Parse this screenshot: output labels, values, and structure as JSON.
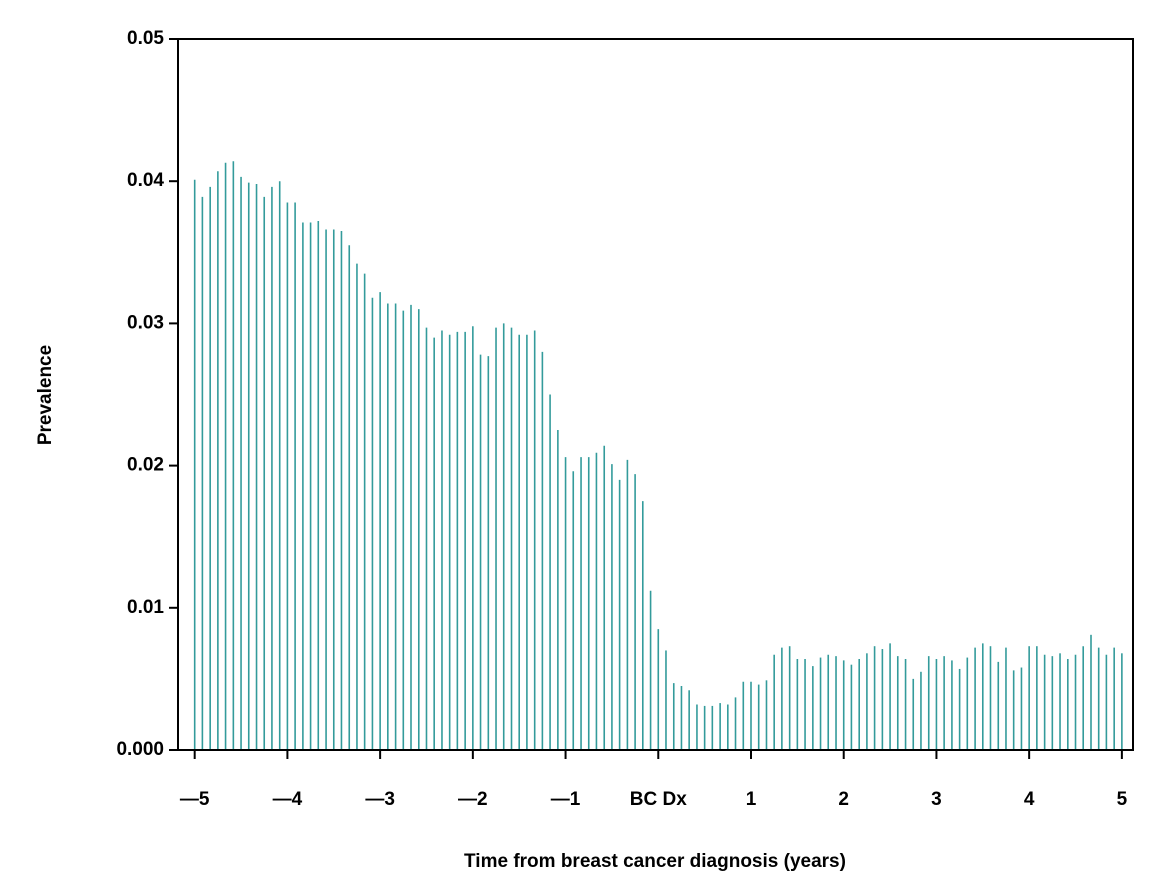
{
  "chart_data": {
    "type": "bar",
    "x_label": "Time from breast cancer diagnosis (years)",
    "y_label": "Prevalence",
    "color": "#339b9b",
    "x": [
      -5,
      -4.917,
      -4.833,
      -4.75,
      -4.667,
      -4.583,
      -4.5,
      -4.417,
      -4.333,
      -4.25,
      -4.167,
      -4.083,
      -4,
      -3.917,
      -3.833,
      -3.75,
      -3.667,
      -3.583,
      -3.5,
      -3.417,
      -3.333,
      -3.25,
      -3.167,
      -3.083,
      -3,
      -2.917,
      -2.833,
      -2.75,
      -2.667,
      -2.583,
      -2.5,
      -2.417,
      -2.333,
      -2.25,
      -2.167,
      -2.083,
      -2,
      -1.917,
      -1.833,
      -1.75,
      -1.667,
      -1.583,
      -1.5,
      -1.417,
      -1.333,
      -1.25,
      -1.167,
      -1.083,
      -1,
      -0.917,
      -0.833,
      -0.75,
      -0.667,
      -0.583,
      -0.5,
      -0.417,
      -0.333,
      -0.25,
      -0.167,
      -0.083,
      0,
      0.083,
      0.167,
      0.25,
      0.333,
      0.417,
      0.5,
      0.583,
      0.667,
      0.75,
      0.833,
      0.917,
      1,
      1.083,
      1.167,
      1.25,
      1.333,
      1.417,
      1.5,
      1.583,
      1.667,
      1.75,
      1.833,
      1.917,
      2,
      2.083,
      2.167,
      2.25,
      2.333,
      2.417,
      2.5,
      2.583,
      2.667,
      2.75,
      2.833,
      2.917,
      3,
      3.083,
      3.167,
      3.25,
      3.333,
      3.417,
      3.5,
      3.583,
      3.667,
      3.75,
      3.833,
      3.917,
      4,
      4.083,
      4.167,
      4.25,
      4.333,
      4.417,
      4.5,
      4.583,
      4.667,
      4.75,
      4.833,
      4.917,
      5
    ],
    "values": [
      0.0401,
      0.0389,
      0.0396,
      0.0407,
      0.0413,
      0.0414,
      0.0403,
      0.0399,
      0.0398,
      0.0389,
      0.0396,
      0.04,
      0.0385,
      0.0385,
      0.0371,
      0.0371,
      0.0372,
      0.0366,
      0.0366,
      0.0365,
      0.0355,
      0.0342,
      0.0335,
      0.0318,
      0.0322,
      0.0314,
      0.0314,
      0.0309,
      0.0313,
      0.031,
      0.0297,
      0.029,
      0.0295,
      0.0292,
      0.0294,
      0.0294,
      0.0298,
      0.0278,
      0.0277,
      0.0297,
      0.03,
      0.0297,
      0.0292,
      0.0292,
      0.0295,
      0.028,
      0.025,
      0.0225,
      0.0206,
      0.0196,
      0.0206,
      0.0206,
      0.0209,
      0.0214,
      0.0201,
      0.019,
      0.0204,
      0.0194,
      0.0175,
      0.0112,
      0.0085,
      0.007,
      0.0047,
      0.0045,
      0.0042,
      0.0032,
      0.0031,
      0.0031,
      0.0033,
      0.0032,
      0.0037,
      0.0048,
      0.0048,
      0.0046,
      0.0049,
      0.0067,
      0.0072,
      0.0073,
      0.0064,
      0.0064,
      0.0059,
      0.0065,
      0.0067,
      0.0066,
      0.0063,
      0.006,
      0.0064,
      0.0068,
      0.0073,
      0.0071,
      0.0075,
      0.0066,
      0.0064,
      0.005,
      0.0055,
      0.0066,
      0.0064,
      0.0066,
      0.0063,
      0.0057,
      0.0065,
      0.0072,
      0.0075,
      0.0073,
      0.0062,
      0.0072,
      0.0056,
      0.0058,
      0.0073,
      0.0073,
      0.0067,
      0.0066,
      0.0068,
      0.0064,
      0.0067,
      0.0073,
      0.0081,
      0.0072,
      0.0067,
      0.0072,
      0.0068
    ],
    "xlim": [
      -5.18,
      5.12
    ],
    "ylim": [
      0,
      0.05
    ],
    "xticks": [
      {
        "value": -5,
        "label": "—5"
      },
      {
        "value": -4,
        "label": "—4"
      },
      {
        "value": -3,
        "label": "—3"
      },
      {
        "value": -2,
        "label": "—2"
      },
      {
        "value": -1,
        "label": "—1"
      },
      {
        "value": 0,
        "label": "BC Dx"
      },
      1,
      2,
      3,
      4,
      5
    ],
    "yticks": [
      {
        "value": 0,
        "label": "0.000"
      },
      0.01,
      0.02,
      0.03,
      0.04,
      0.05
    ]
  }
}
